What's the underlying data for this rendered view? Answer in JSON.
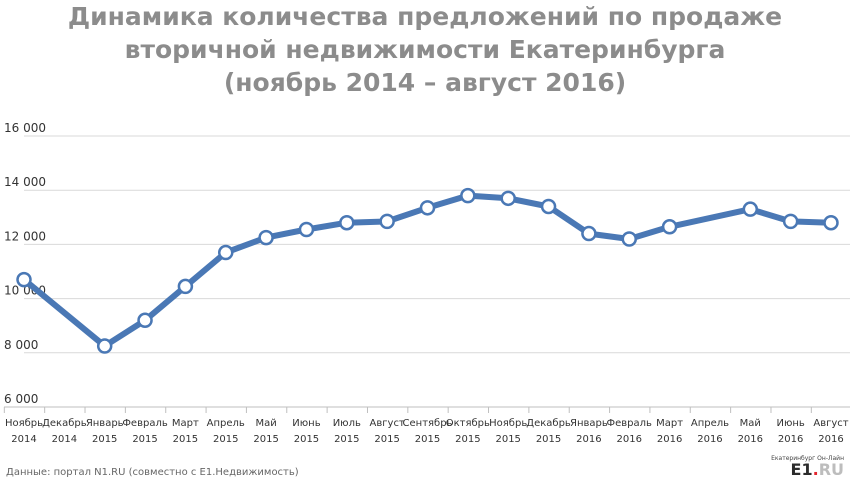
{
  "title": {
    "line1": "Динамика количества предложений по продаже",
    "line2": "вторичной недвижимости Екатеринбурга",
    "line3": "(ноябрь 2014 – август 2016)"
  },
  "source": "Данные: портал N1.RU (совместно с Е1.Недвижимость)",
  "logo": {
    "subtitle": "Екатеринбург Он-Лайн",
    "main": "E1",
    "dot": ".",
    "suffix": "RU",
    "accent_color": "#e3262f"
  },
  "colors": {
    "line": "#4a78b5",
    "marker_fill": "#ffffff",
    "grid": "#d9d9d9",
    "axis_text": "#333333",
    "title": "#8c8c8c"
  },
  "chart_data": {
    "type": "line",
    "title": "Динамика количества предложений по продаже вторичной недвижимости Екатеринбурга (ноябрь 2014 – август 2016)",
    "ylim": [
      6000,
      16000
    ],
    "yticks": [
      6000,
      8000,
      10000,
      12000,
      14000,
      16000
    ],
    "ytick_labels": [
      "6 000",
      "8 000",
      "10 000",
      "12 000",
      "14 000",
      "16 000"
    ],
    "grid": true,
    "categories": [
      [
        "Ноябрь",
        "2014"
      ],
      [
        "Декабрь",
        "2014"
      ],
      [
        "Январь",
        "2015"
      ],
      [
        "Февраль",
        "2015"
      ],
      [
        "Март",
        "2015"
      ],
      [
        "Апрель",
        "2015"
      ],
      [
        "Май",
        "2015"
      ],
      [
        "Июнь",
        "2015"
      ],
      [
        "Июль",
        "2015"
      ],
      [
        "Август",
        "2015"
      ],
      [
        "Сентябрь",
        "2015"
      ],
      [
        "Октябрь",
        "2015"
      ],
      [
        "Ноябрь",
        "2015"
      ],
      [
        "Декабрь",
        "2015"
      ],
      [
        "Январь",
        "2016"
      ],
      [
        "Февраль",
        "2016"
      ],
      [
        "Март",
        "2016"
      ],
      [
        "Апрель",
        "2016"
      ],
      [
        "Май",
        "2016"
      ],
      [
        "Июнь",
        "2016"
      ],
      [
        "Август",
        "2016"
      ]
    ],
    "series": [
      {
        "values": [
          10700,
          null,
          8250,
          9200,
          10450,
          11700,
          12250,
          12550,
          12800,
          12850,
          13350,
          13800,
          13700,
          13400,
          12400,
          12200,
          12650,
          null,
          13300,
          12850,
          12800
        ]
      }
    ]
  }
}
